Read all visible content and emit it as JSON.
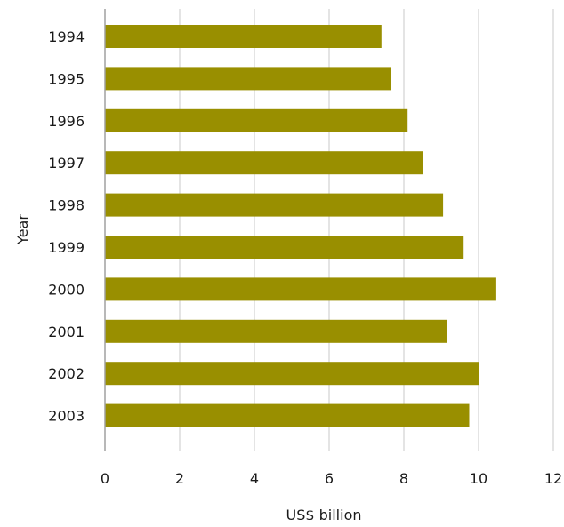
{
  "chart_data": {
    "type": "bar",
    "orientation": "horizontal",
    "title": "",
    "xlabel": "US$ billion",
    "ylabel": "Year",
    "categories": [
      "1994",
      "1995",
      "1996",
      "1997",
      "1998",
      "1999",
      "2000",
      "2001",
      "2002",
      "2003"
    ],
    "values": [
      7.4,
      7.65,
      8.1,
      8.5,
      9.05,
      9.6,
      10.45,
      9.15,
      10.0,
      9.75
    ],
    "xlim": [
      0,
      12
    ],
    "xticks": [
      0,
      2,
      4,
      6,
      8,
      10,
      12
    ],
    "grid": "vertical",
    "legend": "none",
    "bar_color": "#998f00",
    "grid_color": "#c8c8c8",
    "axis_color": "#a0a0a0"
  }
}
